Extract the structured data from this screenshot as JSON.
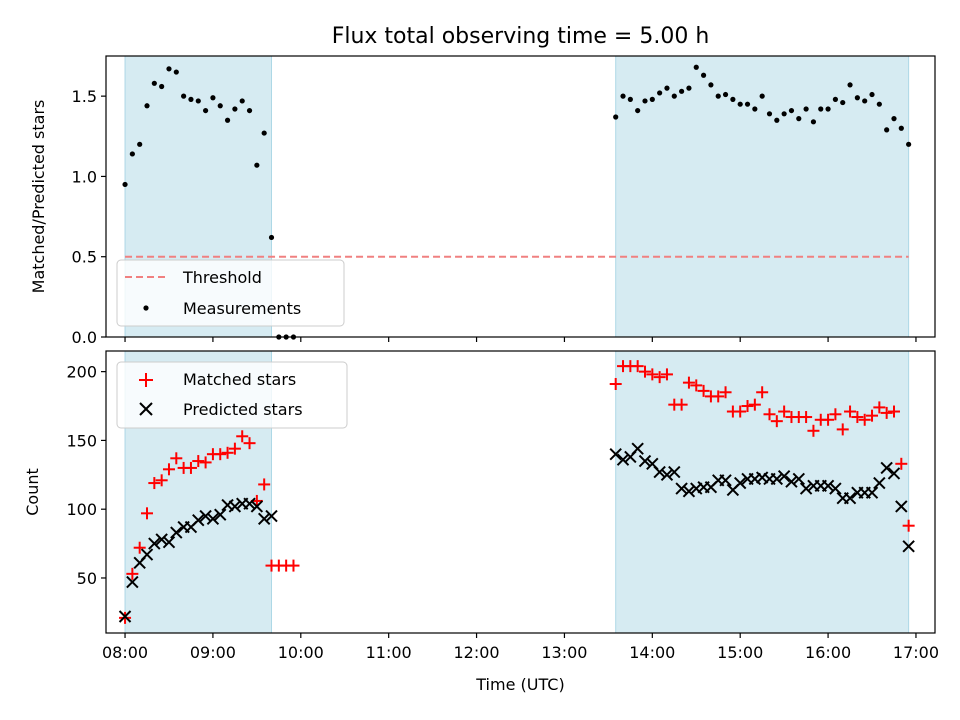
{
  "title": "Flux total observing time = 5.00 h",
  "colors": {
    "shade": "#add8e6",
    "threshold": "#f08080",
    "measurements": "#000000",
    "matched": "#ff0000",
    "predicted": "#000000"
  },
  "chart_data": [
    {
      "type": "scatter",
      "xlabel": "",
      "ylabel": "Matched/Predicted stars",
      "ylim": [
        0,
        1.75
      ],
      "yticks": [
        "0.0",
        "0.5",
        "1.0",
        "1.5"
      ],
      "yticks_values": [
        0,
        0.5,
        1.0,
        1.5
      ],
      "xlim": [
        "07:47",
        "17:13"
      ],
      "x_tick_labels_visible": false,
      "shaded_intervals": [
        [
          "08:00",
          "09:40"
        ],
        [
          "13:35",
          "16:55"
        ]
      ],
      "legend_position": "lower-left",
      "threshold": {
        "name": "Threshold",
        "value": 0.5,
        "x_range": [
          "08:00",
          "16:55"
        ],
        "style": "dashed"
      },
      "series": [
        {
          "name": "Measurements",
          "marker": "dot",
          "points": [
            [
              "08:00",
              0.95
            ],
            [
              "08:05",
              1.14
            ],
            [
              "08:10",
              1.2
            ],
            [
              "08:15",
              1.44
            ],
            [
              "08:20",
              1.58
            ],
            [
              "08:25",
              1.56
            ],
            [
              "08:30",
              1.67
            ],
            [
              "08:35",
              1.65
            ],
            [
              "08:40",
              1.5
            ],
            [
              "08:45",
              1.48
            ],
            [
              "08:50",
              1.47
            ],
            [
              "08:55",
              1.41
            ],
            [
              "09:00",
              1.49
            ],
            [
              "09:05",
              1.44
            ],
            [
              "09:10",
              1.35
            ],
            [
              "09:15",
              1.42
            ],
            [
              "09:20",
              1.47
            ],
            [
              "09:25",
              1.41
            ],
            [
              "09:30",
              1.07
            ],
            [
              "09:35",
              1.27
            ],
            [
              "09:40",
              0.62
            ],
            [
              "09:45",
              0.0
            ],
            [
              "09:50",
              0.0
            ],
            [
              "09:55",
              0.0
            ],
            [
              "13:35",
              1.37
            ],
            [
              "13:40",
              1.5
            ],
            [
              "13:45",
              1.48
            ],
            [
              "13:50",
              1.41
            ],
            [
              "13:55",
              1.47
            ],
            [
              "14:00",
              1.48
            ],
            [
              "14:05",
              1.52
            ],
            [
              "14:10",
              1.55
            ],
            [
              "14:15",
              1.5
            ],
            [
              "14:20",
              1.53
            ],
            [
              "14:25",
              1.55
            ],
            [
              "14:30",
              1.68
            ],
            [
              "14:35",
              1.63
            ],
            [
              "14:40",
              1.57
            ],
            [
              "14:45",
              1.5
            ],
            [
              "14:50",
              1.51
            ],
            [
              "14:55",
              1.48
            ],
            [
              "15:00",
              1.45
            ],
            [
              "15:05",
              1.45
            ],
            [
              "15:10",
              1.42
            ],
            [
              "15:15",
              1.5
            ],
            [
              "15:20",
              1.39
            ],
            [
              "15:25",
              1.35
            ],
            [
              "15:30",
              1.39
            ],
            [
              "15:35",
              1.41
            ],
            [
              "15:40",
              1.36
            ],
            [
              "15:45",
              1.42
            ],
            [
              "15:50",
              1.34
            ],
            [
              "15:55",
              1.42
            ],
            [
              "16:00",
              1.42
            ],
            [
              "16:05",
              1.48
            ],
            [
              "16:10",
              1.46
            ],
            [
              "16:15",
              1.57
            ],
            [
              "16:20",
              1.49
            ],
            [
              "16:25",
              1.47
            ],
            [
              "16:30",
              1.51
            ],
            [
              "16:35",
              1.45
            ],
            [
              "16:40",
              1.29
            ],
            [
              "16:45",
              1.36
            ],
            [
              "16:50",
              1.3
            ],
            [
              "16:55",
              1.2
            ]
          ]
        }
      ]
    },
    {
      "type": "scatter",
      "xlabel": "Time (UTC)",
      "ylabel": "Count",
      "ylim": [
        10,
        215
      ],
      "yticks": [
        "50",
        "100",
        "150",
        "200"
      ],
      "yticks_values": [
        50,
        100,
        150,
        200
      ],
      "xlim": [
        "07:47",
        "17:13"
      ],
      "xticks": [
        "08:00",
        "09:00",
        "10:00",
        "11:00",
        "12:00",
        "13:00",
        "14:00",
        "15:00",
        "16:00",
        "17:00"
      ],
      "shaded_intervals": [
        [
          "08:00",
          "09:40"
        ],
        [
          "13:35",
          "16:55"
        ]
      ],
      "legend_position": "upper-left",
      "series": [
        {
          "name": "Matched stars",
          "marker": "plus",
          "points": [
            [
              "08:00",
              21
            ],
            [
              "08:05",
              53
            ],
            [
              "08:10",
              72
            ],
            [
              "08:15",
              97
            ],
            [
              "08:20",
              119
            ],
            [
              "08:25",
              121
            ],
            [
              "08:30",
              129
            ],
            [
              "08:35",
              137
            ],
            [
              "08:40",
              130
            ],
            [
              "08:45",
              130
            ],
            [
              "08:50",
              135
            ],
            [
              "08:55",
              134
            ],
            [
              "09:00",
              140
            ],
            [
              "09:05",
              140
            ],
            [
              "09:10",
              141
            ],
            [
              "09:15",
              144
            ],
            [
              "09:20",
              153
            ],
            [
              "09:25",
              148
            ],
            [
              "09:30",
              106
            ],
            [
              "09:35",
              118
            ],
            [
              "09:40",
              59
            ],
            [
              "09:45",
              59
            ],
            [
              "09:50",
              59
            ],
            [
              "09:55",
              59
            ],
            [
              "13:35",
              191
            ],
            [
              "13:40",
              204
            ],
            [
              "13:45",
              204
            ],
            [
              "13:50",
              204
            ],
            [
              "13:55",
              200
            ],
            [
              "14:00",
              198
            ],
            [
              "14:05",
              196
            ],
            [
              "14:10",
              198
            ],
            [
              "14:15",
              176
            ],
            [
              "14:20",
              176
            ],
            [
              "14:25",
              192
            ],
            [
              "14:30",
              190
            ],
            [
              "14:35",
              186
            ],
            [
              "14:40",
              182
            ],
            [
              "14:45",
              182
            ],
            [
              "14:50",
              185
            ],
            [
              "14:55",
              171
            ],
            [
              "15:00",
              171
            ],
            [
              "15:05",
              175
            ],
            [
              "15:10",
              176
            ],
            [
              "15:15",
              185
            ],
            [
              "15:20",
              169
            ],
            [
              "15:25",
              164
            ],
            [
              "15:30",
              171
            ],
            [
              "15:35",
              167
            ],
            [
              "15:40",
              167
            ],
            [
              "15:45",
              167
            ],
            [
              "15:50",
              157
            ],
            [
              "15:55",
              165
            ],
            [
              "16:00",
              165
            ],
            [
              "16:05",
              169
            ],
            [
              "16:10",
              158
            ],
            [
              "16:15",
              171
            ],
            [
              "16:20",
              167
            ],
            [
              "16:25",
              165
            ],
            [
              "16:30",
              168
            ],
            [
              "16:35",
              174
            ],
            [
              "16:40",
              170
            ],
            [
              "16:45",
              171
            ],
            [
              "16:50",
              133
            ],
            [
              "16:55",
              88
            ]
          ]
        },
        {
          "name": "Predicted stars",
          "marker": "x",
          "points": [
            [
              "08:00",
              22
            ],
            [
              "08:05",
              47
            ],
            [
              "08:10",
              61
            ],
            [
              "08:15",
              67
            ],
            [
              "08:20",
              75
            ],
            [
              "08:25",
              78
            ],
            [
              "08:30",
              76
            ],
            [
              "08:35",
              83
            ],
            [
              "08:40",
              87
            ],
            [
              "08:45",
              87
            ],
            [
              "08:50",
              92
            ],
            [
              "08:55",
              95
            ],
            [
              "09:00",
              93
            ],
            [
              "09:05",
              96
            ],
            [
              "09:10",
              103
            ],
            [
              "09:15",
              102
            ],
            [
              "09:20",
              104
            ],
            [
              "09:25",
              104
            ],
            [
              "09:30",
              102
            ],
            [
              "09:35",
              93
            ],
            [
              "09:40",
              95
            ],
            [
              "13:35",
              140
            ],
            [
              "13:40",
              136
            ],
            [
              "13:45",
              138
            ],
            [
              "13:50",
              144
            ],
            [
              "13:55",
              135
            ],
            [
              "14:00",
              133
            ],
            [
              "14:05",
              127
            ],
            [
              "14:10",
              125
            ],
            [
              "14:15",
              127
            ],
            [
              "14:20",
              115
            ],
            [
              "14:25",
              113
            ],
            [
              "14:30",
              115
            ],
            [
              "14:35",
              116
            ],
            [
              "14:40",
              116
            ],
            [
              "14:45",
              121
            ],
            [
              "14:50",
              121
            ],
            [
              "14:55",
              114
            ],
            [
              "15:00",
              119
            ],
            [
              "15:05",
              122
            ],
            [
              "15:10",
              122
            ],
            [
              "15:15",
              123
            ],
            [
              "15:20",
              122
            ],
            [
              "15:25",
              122
            ],
            [
              "15:30",
              124
            ],
            [
              "15:35",
              120
            ],
            [
              "15:40",
              122
            ],
            [
              "15:45",
              115
            ],
            [
              "15:50",
              117
            ],
            [
              "15:55",
              117
            ],
            [
              "16:00",
              117
            ],
            [
              "16:05",
              115
            ],
            [
              "16:10",
              108
            ],
            [
              "16:15",
              108
            ],
            [
              "16:20",
              112
            ],
            [
              "16:25",
              112
            ],
            [
              "16:30",
              112
            ],
            [
              "16:35",
              119
            ],
            [
              "16:40",
              130
            ],
            [
              "16:45",
              126
            ],
            [
              "16:50",
              102
            ],
            [
              "16:55",
              73
            ]
          ]
        }
      ]
    }
  ]
}
